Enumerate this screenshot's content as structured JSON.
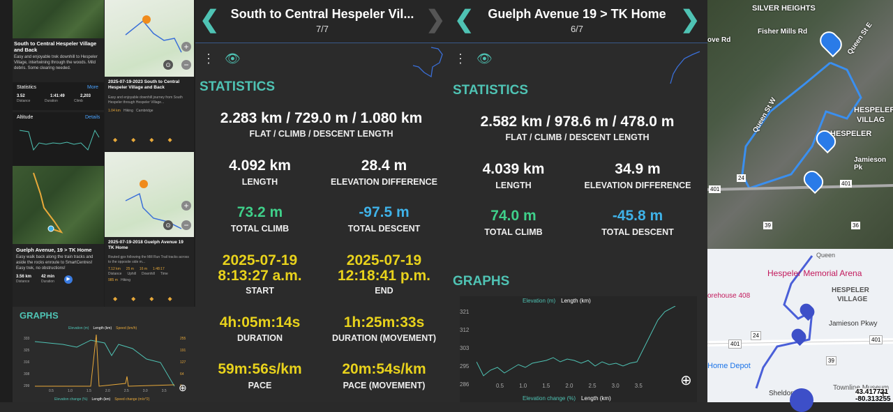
{
  "left": {
    "card1": {
      "title": "South to Central Hespeler Village and Back",
      "desc": "Easy and enjoyable trek downhill to Hespeler Village, intertwining through the woods. Mild debris. Some clearing needed.",
      "stats_label": "Statistics",
      "more": "More",
      "distance_val": "3.52",
      "distance_lbl": "Distance",
      "duration_val": "1:41:49",
      "duration_lbl": "Duration",
      "climb_val": "2,203",
      "climb_lbl": "Climb",
      "altitude_label": "Altitude",
      "details": "Details"
    },
    "card2": {
      "title": "2025-07-19-2023 South to Central Hespeler Village and Back",
      "desc": "Easy and enjoyable downhill journey from South Hespeler through Hespeler Village...",
      "dist": "1.04 km",
      "activity": "Hiking",
      "place": "Cambridge"
    },
    "card3": {
      "title": "Guelph Avenue, 19 > TK Home",
      "desc": "Easy walk back along the train tracks and aside the rocks enroute to SmartCentres! Easy trek, no obstructions!",
      "distance_val": "3.56 km",
      "distance_lbl": "Distance",
      "duration_val": "42 min",
      "duration_lbl": "Duration"
    },
    "card4": {
      "title": "2025-07-19-2018 Guelph Avenue 19 TK Home",
      "desc": "Routed gpx following the Mill Run Trail tracks across to the opposite side m...",
      "dist": "7.12 km",
      "uphill": "25 m",
      "downhill": "16 m",
      "time": "1:48:17",
      "d_lbl": "Distance",
      "u_lbl": "Uphill",
      "dn_lbl": "Downhill",
      "t_lbl": "Time",
      "sub_dist": "985 m",
      "activity": "Hiking"
    },
    "graphs": {
      "title": "GRAPHS",
      "legend": [
        "Elevation (m)",
        "Length (km)",
        "Speed (km/h)"
      ],
      "bottom_legend": [
        "Elevation change (%)",
        "Length (km)",
        "Speed change (m/s^2)"
      ],
      "left_ticks": [
        "333",
        "325",
        "316",
        "308",
        "299"
      ],
      "right_ticks": [
        "255",
        "191",
        "127",
        "64",
        "0"
      ],
      "x_ticks": [
        "0.5",
        "1.0",
        "1.5",
        "2.0",
        "2.5",
        "3.0",
        "3.5"
      ]
    }
  },
  "panel1": {
    "title": "South to Central Hespeler Vil...",
    "page": "7/7",
    "statistics": "STATISTICS",
    "combo": "2.283 km / 729.0 m / 1.080 km",
    "combo_lbl": "FLAT / CLIMB / DESCENT LENGTH",
    "length": "4.092 km",
    "length_lbl": "LENGTH",
    "elev_diff": "28.4 m",
    "elev_diff_lbl": "ELEVATION DIFFERENCE",
    "climb": "73.2 m",
    "climb_lbl": "TOTAL CLIMB",
    "descent": "-97.5 m",
    "descent_lbl": "TOTAL DESCENT",
    "start_date": "2025-07-19",
    "start_time": "8:13:27 a.m.",
    "start_lbl": "START",
    "end_date": "2025-07-19",
    "end_time": "12:18:41 p.m.",
    "end_lbl": "END",
    "duration": "4h:05m:14s",
    "duration_lbl": "DURATION",
    "duration_mov": "1h:25m:33s",
    "duration_mov_lbl": "DURATION (MOVEMENT)",
    "pace": "59m:56s/km",
    "pace_lbl": "PACE",
    "pace_mov": "20m:54s/km",
    "pace_mov_lbl": "PACE (MOVEMENT)"
  },
  "panel2": {
    "title": "Guelph Avenue 19 > TK Home",
    "page": "6/7",
    "statistics": "STATISTICS",
    "combo": "2.582 km / 978.6 m / 478.0 m",
    "combo_lbl": "FLAT / CLIMB / DESCENT LENGTH",
    "length": "4.039 km",
    "length_lbl": "LENGTH",
    "elev_diff": "34.9 m",
    "elev_diff_lbl": "ELEVATION DIFFERENCE",
    "climb": "74.0 m",
    "climb_lbl": "TOTAL CLIMB",
    "descent": "-45.8 m",
    "descent_lbl": "TOTAL DESCENT",
    "graphs": "GRAPHS",
    "legend": [
      "Elevation (m)",
      "Length (km)"
    ],
    "bottom_legend": [
      "Elevation change (%)",
      "Length (km)"
    ],
    "y_ticks": [
      "321",
      "312",
      "303",
      "295",
      "286"
    ],
    "x_ticks": [
      "0.5",
      "1.0",
      "1.5",
      "2.0",
      "2.5",
      "3.0",
      "3.5"
    ]
  },
  "rightmap": {
    "labels": [
      "SILVER HEIGHTS",
      "Fisher Mills Rd",
      "ove Rd",
      "Queen St E",
      "Queen St W",
      "HESPELER",
      "VILLAG",
      "HESPELER",
      "Jamieson Pk",
      "401",
      "24",
      "401",
      "39",
      "36"
    ],
    "lower": {
      "arena": "Hespeler Memorial Arena",
      "village1": "HESPELER",
      "village2": "VILLAGE",
      "queen": "Queen",
      "jamieson": "Jamieson Pkwy",
      "storehouse": "orehouse 408",
      "depot": "Home Depot",
      "sheldon": "Sheldon D",
      "museum": "Townline Museum",
      "hwy401a": "401",
      "hwy401b": "401",
      "hwy24": "24",
      "hwy39": "39",
      "coords": "43.417721",
      "coords2": "-80.313255"
    }
  }
}
